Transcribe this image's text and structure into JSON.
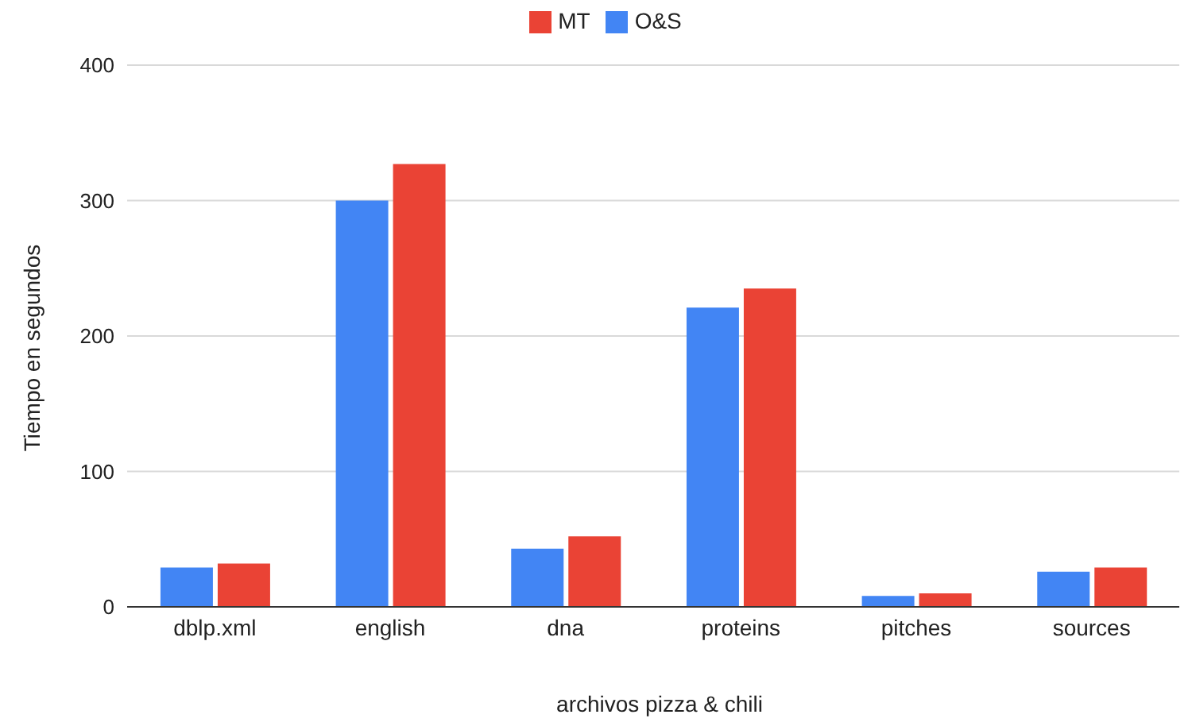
{
  "chart_data": {
    "type": "bar",
    "xlabel": "archivos pizza & chili",
    "ylabel": "Tiempo en segundos",
    "categories": [
      "dblp.xml",
      "english",
      "dna",
      "proteins",
      "pitches",
      "sources"
    ],
    "series": [
      {
        "name": "O&S",
        "color": "#4285f4",
        "values": [
          29,
          300,
          43,
          221,
          8,
          26
        ]
      },
      {
        "name": "MT",
        "color": "#ea4335",
        "values": [
          32,
          327,
          52,
          235,
          10,
          29
        ]
      }
    ],
    "ylim": [
      0,
      400
    ],
    "yticks": [
      0,
      100,
      200,
      300,
      400
    ],
    "grid": "y",
    "legend": "top"
  }
}
